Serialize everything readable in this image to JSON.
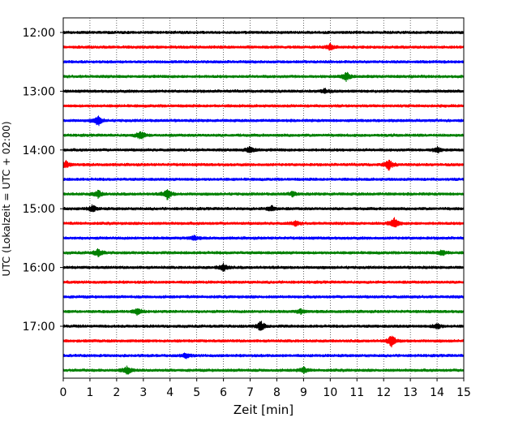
{
  "chart_data": {
    "type": "line",
    "title": "",
    "xlabel": "Zeit  [min]",
    "ylabel": "UTC (Lokalzeit = UTC + 02:00)",
    "x_ticks": [
      "0",
      "1",
      "2",
      "3",
      "4",
      "5",
      "6",
      "7",
      "8",
      "9",
      "10",
      "11",
      "12",
      "13",
      "14",
      "15"
    ],
    "xlim": [
      0,
      15
    ],
    "y_time_labels": [
      "12:00",
      "13:00",
      "14:00",
      "15:00",
      "16:00",
      "17:00"
    ],
    "interval_minutes": 15,
    "start_time": "12:00",
    "trace_count": 24,
    "colors": [
      "#000000",
      "#ff0000",
      "#0000ff",
      "#008000"
    ],
    "grid_x": true,
    "grid_style": "dotted",
    "events": [
      {
        "trace": 1,
        "minute": 10.0,
        "amp": 0.5
      },
      {
        "trace": 3,
        "minute": 10.6,
        "amp": 0.8
      },
      {
        "trace": 4,
        "minute": 9.8,
        "amp": 0.4
      },
      {
        "trace": 6,
        "minute": 1.3,
        "amp": 0.9
      },
      {
        "trace": 7,
        "minute": 2.9,
        "amp": 0.8
      },
      {
        "trace": 8,
        "minute": 7.0,
        "amp": 0.7
      },
      {
        "trace": 8,
        "minute": 14.0,
        "amp": 0.5
      },
      {
        "trace": 9,
        "minute": 0.1,
        "amp": 0.6
      },
      {
        "trace": 9,
        "minute": 12.2,
        "amp": 0.9
      },
      {
        "trace": 11,
        "minute": 1.3,
        "amp": 0.7
      },
      {
        "trace": 11,
        "minute": 3.9,
        "amp": 0.9
      },
      {
        "trace": 11,
        "minute": 8.6,
        "amp": 0.4
      },
      {
        "trace": 12,
        "minute": 1.1,
        "amp": 0.6
      },
      {
        "trace": 12,
        "minute": 7.8,
        "amp": 0.5
      },
      {
        "trace": 13,
        "minute": 12.4,
        "amp": 0.9
      },
      {
        "trace": 13,
        "minute": 8.7,
        "amp": 0.4
      },
      {
        "trace": 14,
        "minute": 4.9,
        "amp": 0.4
      },
      {
        "trace": 15,
        "minute": 1.3,
        "amp": 0.7
      },
      {
        "trace": 15,
        "minute": 14.2,
        "amp": 0.5
      },
      {
        "trace": 16,
        "minute": 6.0,
        "amp": 0.7
      },
      {
        "trace": 19,
        "minute": 2.8,
        "amp": 0.7
      },
      {
        "trace": 19,
        "minute": 8.9,
        "amp": 0.4
      },
      {
        "trace": 20,
        "minute": 7.4,
        "amp": 0.9
      },
      {
        "trace": 20,
        "minute": 14.0,
        "amp": 0.5
      },
      {
        "trace": 21,
        "minute": 12.3,
        "amp": 1.0
      },
      {
        "trace": 22,
        "minute": 4.6,
        "amp": 0.4
      },
      {
        "trace": 23,
        "minute": 2.4,
        "amp": 0.7
      },
      {
        "trace": 23,
        "minute": 9.0,
        "amp": 0.5
      }
    ]
  }
}
